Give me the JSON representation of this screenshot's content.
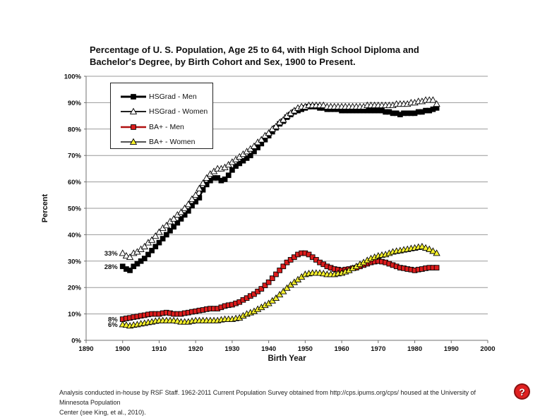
{
  "title": {
    "line1": "Percentage of U. S. Population, Age 25 to 64, with High School Diploma and",
    "line2": "Bachelor's Degree, by Birth Cohort and Sex, 1900 to Present."
  },
  "footer": {
    "line1": "Analysis conducted in-house by RSF Staff. 1962-2011 Current Population Survey obtained from http://cps.ipums.org/cps/ housed at the University of Minnesota Population",
    "line2": "Center (see King, et al., 2010)."
  },
  "help_button": {
    "label": "?",
    "color": "#e02020"
  },
  "chart_data": {
    "type": "line",
    "title": "Percentage of U. S. Population, Age 25 to 64, with High School Diploma and Bachelor's Degree, by Birth Cohort and Sex, 1900 to Present.",
    "xlabel": "Birth Year",
    "ylabel": "Percent",
    "xlim": [
      1890,
      2000
    ],
    "ylim": [
      0,
      100
    ],
    "x_ticks": [
      1890,
      1900,
      1910,
      1920,
      1930,
      1940,
      1950,
      1960,
      1970,
      1980,
      1990,
      2000
    ],
    "y_ticks": [
      0,
      10,
      20,
      30,
      40,
      50,
      60,
      70,
      80,
      90,
      100
    ],
    "grid": "horizontal",
    "legend_position": "top-left-inside",
    "x": [
      1900,
      1901,
      1902,
      1903,
      1904,
      1905,
      1906,
      1907,
      1908,
      1909,
      1910,
      1911,
      1912,
      1913,
      1914,
      1915,
      1916,
      1917,
      1918,
      1919,
      1920,
      1921,
      1922,
      1923,
      1924,
      1925,
      1926,
      1927,
      1928,
      1929,
      1930,
      1931,
      1932,
      1933,
      1934,
      1935,
      1936,
      1937,
      1938,
      1939,
      1940,
      1941,
      1942,
      1943,
      1944,
      1945,
      1946,
      1947,
      1948,
      1949,
      1950,
      1951,
      1952,
      1953,
      1954,
      1955,
      1956,
      1957,
      1958,
      1959,
      1960,
      1961,
      1962,
      1963,
      1964,
      1965,
      1966,
      1967,
      1968,
      1969,
      1970,
      1971,
      1972,
      1973,
      1974,
      1975,
      1976,
      1977,
      1978,
      1979,
      1980,
      1981,
      1982,
      1983,
      1984,
      1985,
      1986
    ],
    "series": [
      {
        "name": "HSGrad - Men",
        "marker": "square",
        "marker_fill": "#000000",
        "marker_stroke": "#000000",
        "line_color": "#000000",
        "line_width": 2.4,
        "values": [
          28,
          27,
          26.5,
          28,
          29,
          30,
          31,
          32.5,
          34,
          35.5,
          37,
          38.5,
          40,
          41.5,
          43,
          44.5,
          46,
          47.5,
          49,
          51,
          52.5,
          54,
          57,
          59,
          60.5,
          61.5,
          61.5,
          60.5,
          61,
          62.5,
          64.5,
          66,
          67,
          68,
          69,
          70,
          71.5,
          73,
          74.5,
          76,
          77.5,
          79,
          80.5,
          82,
          83,
          84.5,
          85.5,
          86.5,
          87,
          87.5,
          88,
          88.5,
          88.5,
          88.5,
          88,
          88,
          87.5,
          87.5,
          87.5,
          87.5,
          87,
          87,
          87,
          87,
          87,
          87,
          87,
          87,
          87,
          87,
          87,
          87,
          86.5,
          86.5,
          86,
          86,
          85.5,
          86,
          86,
          86,
          86,
          86.5,
          86.5,
          87,
          87,
          87.5,
          88
        ]
      },
      {
        "name": "HSGrad - Women",
        "marker": "triangle",
        "marker_fill": "#ffffff",
        "marker_stroke": "#000000",
        "line_color": "#000000",
        "line_width": 1.1,
        "values": [
          33,
          32,
          31.5,
          33,
          33.5,
          34.5,
          35.5,
          37,
          38,
          39.5,
          41,
          42.5,
          43.5,
          45,
          46,
          47.5,
          48.5,
          50,
          51.5,
          53.5,
          55,
          57.5,
          59.5,
          61.5,
          63,
          64,
          65,
          65,
          65.5,
          66.5,
          67.5,
          68.5,
          69.5,
          70.5,
          71.5,
          72.5,
          73.5,
          75,
          76,
          77.5,
          78.5,
          80,
          81,
          82.5,
          83.5,
          85,
          86,
          87,
          88,
          88.5,
          88.5,
          89,
          89,
          89,
          89,
          89,
          88.5,
          88.5,
          88.5,
          88.5,
          88.5,
          88.5,
          88.5,
          88.5,
          88.5,
          88.5,
          88.5,
          89,
          89,
          89,
          89,
          89,
          89,
          89,
          89,
          89.5,
          89.5,
          89.5,
          89.5,
          90,
          90,
          90.5,
          90.5,
          91,
          91,
          91,
          89.5
        ]
      },
      {
        "name": "BA+ - Men",
        "marker": "square",
        "marker_fill": "#dd1c1c",
        "marker_stroke": "#000000",
        "line_color": "#b01010",
        "line_width": 2,
        "values": [
          8,
          8.3,
          8.5,
          8.8,
          9,
          9.3,
          9.5,
          9.8,
          10,
          10,
          10,
          10.3,
          10.5,
          10.3,
          10,
          10,
          10,
          10.3,
          10.5,
          10.8,
          11,
          11.3,
          11.5,
          11.8,
          12,
          12,
          12,
          12.5,
          13,
          13.3,
          13.5,
          14,
          14.5,
          15.3,
          16,
          16.8,
          17.5,
          18.5,
          19.5,
          20.8,
          22,
          23.5,
          25,
          26.5,
          28,
          29.5,
          30.5,
          31.5,
          32.5,
          33,
          33,
          32.5,
          31.5,
          30.5,
          29.5,
          28.8,
          28,
          27.5,
          27,
          26.8,
          26.5,
          26.8,
          27,
          27.3,
          27.5,
          28,
          28.5,
          29,
          29.5,
          29.8,
          30,
          29.8,
          29.5,
          29,
          28.5,
          28,
          27.5,
          27.3,
          27,
          26.8,
          26.5,
          26.8,
          27,
          27.3,
          27.5,
          27.5,
          27.5
        ]
      },
      {
        "name": "BA+ - Women",
        "marker": "triangle",
        "marker_fill": "#f9f32c",
        "marker_stroke": "#000000",
        "line_color": "#3a3a3a",
        "line_width": 1.1,
        "values": [
          6,
          5.8,
          5.5,
          5.8,
          6,
          6.3,
          6.5,
          6.8,
          7,
          7.3,
          7.5,
          7.5,
          7.5,
          7.5,
          7.5,
          7.3,
          7,
          7,
          7,
          7.3,
          7.5,
          7.5,
          7.5,
          7.5,
          7.5,
          7.5,
          7.5,
          7.8,
          8,
          8,
          8,
          8.3,
          8.5,
          9.3,
          10,
          10.5,
          11,
          11.8,
          12.5,
          13.3,
          14,
          15,
          16,
          17.3,
          18.5,
          19.8,
          21,
          22,
          23,
          24,
          25,
          25.3,
          25.5,
          25.5,
          25.5,
          25.3,
          25,
          25,
          25,
          25.3,
          25.5,
          26,
          26.5,
          27.3,
          28,
          28.8,
          29.5,
          30.3,
          31,
          31.5,
          32,
          32.3,
          32.5,
          33,
          33.5,
          33.8,
          34,
          34.3,
          34.5,
          34.8,
          35,
          35.3,
          35.5,
          35,
          34.5,
          33.8,
          33
        ]
      }
    ],
    "annotations": [
      {
        "text": "33%",
        "year": 1900,
        "value": 33
      },
      {
        "text": "28%",
        "year": 1900,
        "value": 28
      },
      {
        "text": "8%",
        "year": 1900,
        "value": 8
      },
      {
        "text": "6%",
        "year": 1900,
        "value": 6
      }
    ],
    "colors": {
      "grid": "#999999",
      "axis": "#707070",
      "text": "#111111"
    }
  }
}
